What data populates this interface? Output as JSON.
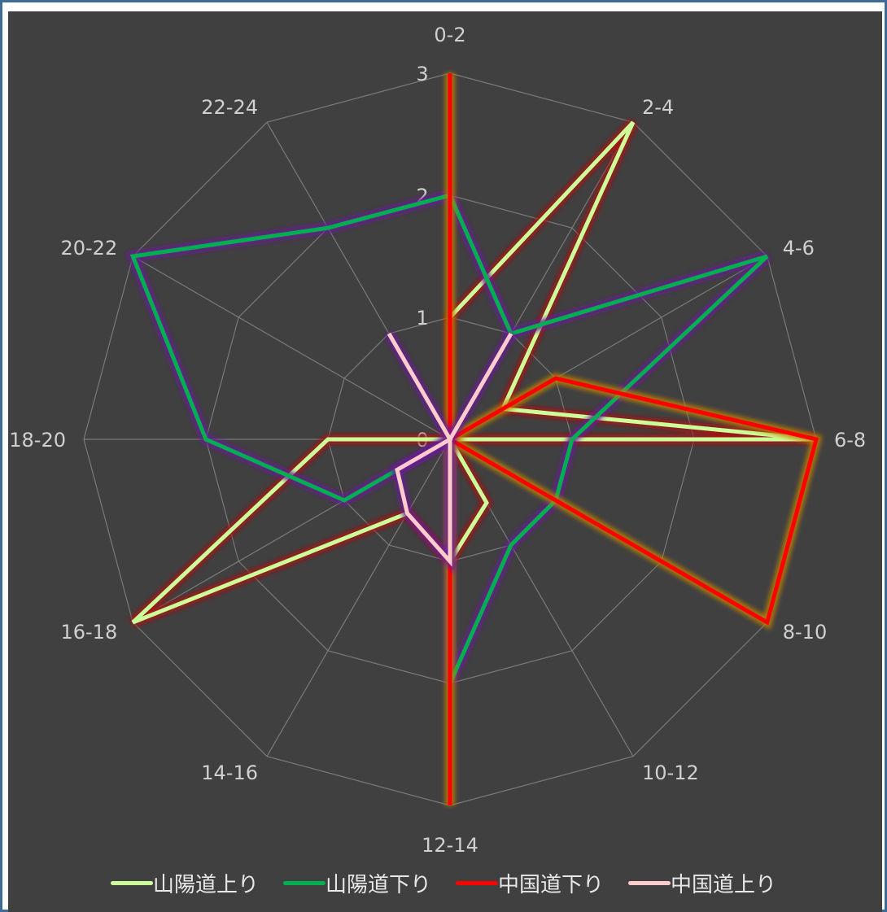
{
  "chart_data": {
    "type": "radar",
    "categories": [
      "0-2",
      "2-4",
      "4-6",
      "6-8",
      "8-10",
      "10-12",
      "12-14",
      "14-16",
      "16-18",
      "18-20",
      "20-22",
      "22-24"
    ],
    "rmax": 3,
    "ticks": [
      "0",
      "1",
      "2",
      "3"
    ],
    "series": [
      {
        "name": "山陽道上り",
        "color": "#ccff99",
        "glow": "#aa1010",
        "values": [
          1,
          3,
          0.5,
          3,
          0,
          0.6,
          1,
          0.7,
          3,
          1,
          0,
          0
        ]
      },
      {
        "name": "山陽道下り",
        "color": "#00b050",
        "glow": "#6a1a9a",
        "values": [
          2,
          1,
          3,
          1,
          1,
          1,
          2,
          0,
          1,
          2,
          3,
          2
        ]
      },
      {
        "name": "中国道下り",
        "color": "#ff0000",
        "glow": "#c08000",
        "values": [
          3,
          0,
          1,
          3,
          3,
          0,
          3,
          0,
          0,
          0,
          0,
          0
        ]
      },
      {
        "name": "中国道上り",
        "color": "#ffcccc",
        "glow": "#6a1a9a",
        "values": [
          0,
          1,
          0,
          0,
          0,
          0,
          1,
          0.7,
          0.5,
          0,
          0,
          1
        ]
      }
    ],
    "legend_position": "bottom",
    "grid": true
  }
}
